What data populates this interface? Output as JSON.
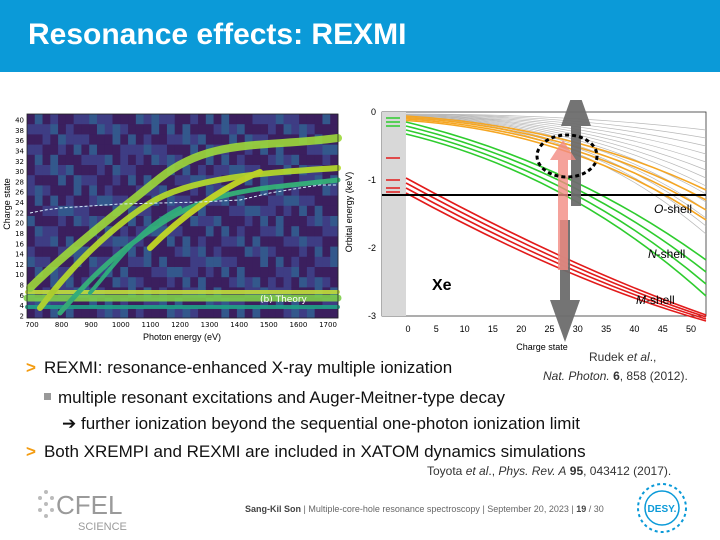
{
  "slide": {
    "title": "Resonance effects: REXMI"
  },
  "left_plot": {
    "ylabel": "Charge state",
    "xlabel": "Photon energy (eV)",
    "annotation": "(b) Theory",
    "yticks": [
      "40",
      "38",
      "36",
      "34",
      "32",
      "30",
      "28",
      "26",
      "24",
      "22",
      "20",
      "18",
      "16",
      "14",
      "12",
      "10",
      "8",
      "6",
      "4",
      "2"
    ],
    "xticks": [
      "700",
      "800",
      "900",
      "1000",
      "1100",
      "1200",
      "1300",
      "1400",
      "1500",
      "1600",
      "1700"
    ]
  },
  "right_plot": {
    "ylabel": "Orbital energy (keV)",
    "xlabel": "Charge state",
    "element": "Xe",
    "yticks": [
      "0",
      "-1",
      "-2",
      "-3"
    ],
    "xticks": [
      "0",
      "5",
      "10",
      "15",
      "20",
      "25",
      "30",
      "35",
      "40",
      "45",
      "50"
    ],
    "shell_labels": {
      "o": {
        "prefix": "O",
        "suffix": "-shell"
      },
      "n": {
        "prefix": "N",
        "suffix": "-shell"
      },
      "m": {
        "prefix": "M",
        "suffix": "-shell"
      }
    },
    "colors": {
      "o_shell": "#f5a623",
      "n_shell": "#2ecc2e",
      "m_shell": "#e21b1b",
      "grey": "#b8b8b8"
    }
  },
  "ref1": {
    "authors": "Rudek ",
    "etal": "et al",
    "dot": ".,",
    "journal": "Nat. Photon.",
    "volume": "6",
    "pages": ", 858 (2012)."
  },
  "bullets": {
    "b1": "REXMI: resonance-enhanced X-ray multiple ionization",
    "b2": "multiple resonant excitations and Auger-Meitner-type decay",
    "b3": "➔ further ionization beyond the sequential one-photon ionization limit",
    "b4": "Both XREMPI and REXMI are included in XATOM dynamics simulations"
  },
  "ref2": {
    "authors": "Toyota ",
    "etal": "et al",
    "dot": "., ",
    "journal": "Phys. Rev. A",
    "volume": "95",
    "pages": ", 043412 (2017)."
  },
  "footer": {
    "author": "Sang-Kil Son",
    "sep1": " | ",
    "talk": "Multiple-core-hole resonance spectroscopy",
    "sep2": " | ",
    "date": "September 20, 2023",
    "sep3": " | ",
    "page": "19",
    "total": " / 30"
  },
  "logos": {
    "cfel_word": "CFEL",
    "cfel_sub": "SCIENCE",
    "desy_word": "DESY."
  }
}
